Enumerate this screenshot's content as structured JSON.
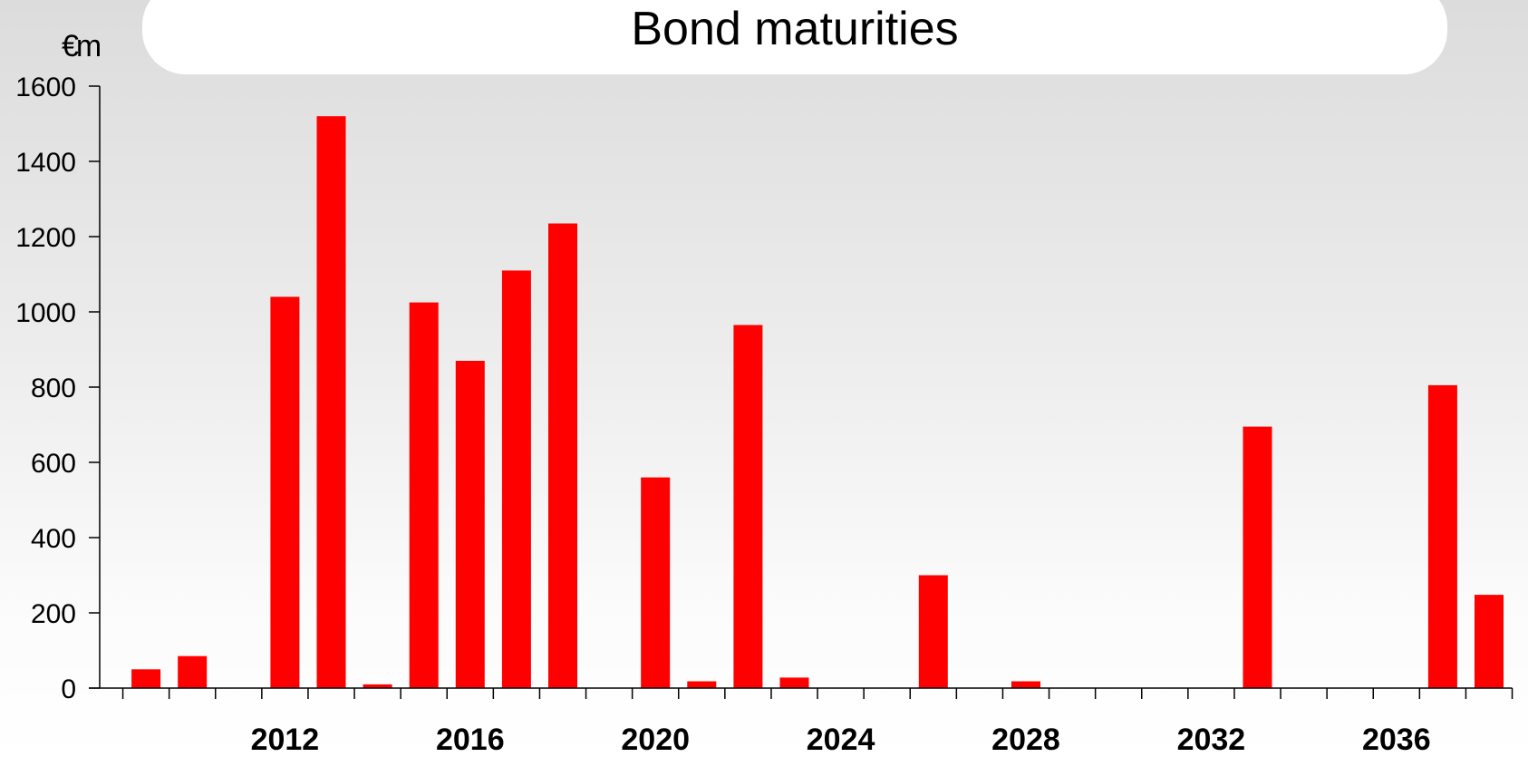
{
  "chart_data": {
    "type": "bar",
    "title": "Bond maturities",
    "ylabel": "€m",
    "xlabel": "",
    "ylim": [
      0,
      1600
    ],
    "yticks": [
      0,
      200,
      400,
      600,
      800,
      1000,
      1200,
      1400,
      1600
    ],
    "grid": false,
    "legend": "none",
    "bar_color": "#ff0000",
    "categories": [
      "2009",
      "2010",
      "2011",
      "2012",
      "2013",
      "2014",
      "2015",
      "2016",
      "2017",
      "2018",
      "2019",
      "2020",
      "2021",
      "2022",
      "2023",
      "2024",
      "2025",
      "2026",
      "2027",
      "2028",
      "2029",
      "2030",
      "2031",
      "2032",
      "2033",
      "2034",
      "2035",
      "2036",
      "2037",
      "2038"
    ],
    "xtick_labels": [
      "",
      "",
      "",
      "2012",
      "",
      "",
      "",
      "2016",
      "",
      "",
      "",
      "2020",
      "",
      "",
      "",
      "2024",
      "",
      "",
      "",
      "2028",
      "",
      "",
      "",
      "2032",
      "",
      "",
      "",
      "2036",
      "",
      ""
    ],
    "values": [
      50,
      85,
      0,
      1040,
      1520,
      10,
      1025,
      870,
      1110,
      1235,
      0,
      560,
      18,
      965,
      28,
      0,
      0,
      300,
      0,
      18,
      0,
      0,
      0,
      0,
      695,
      0,
      0,
      0,
      805,
      248
    ]
  }
}
